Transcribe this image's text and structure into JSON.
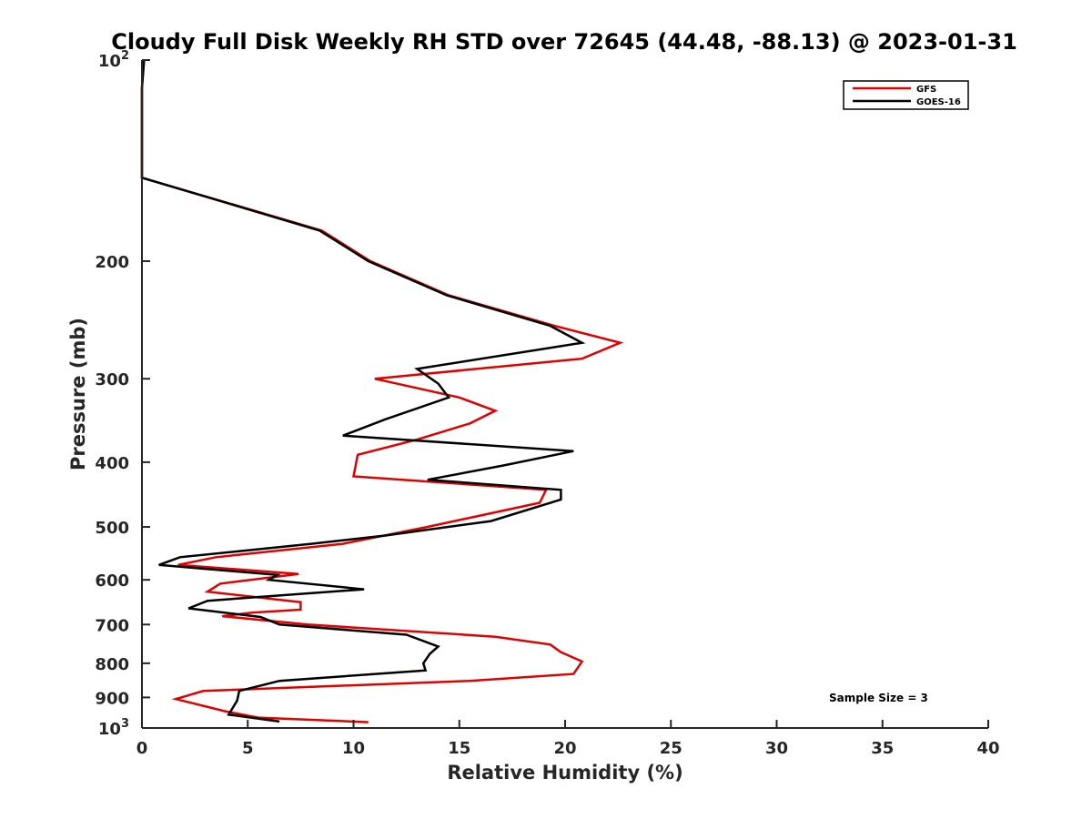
{
  "chart_data": {
    "type": "line",
    "title": "Cloudy Full Disk Weekly RH STD over 72645 (44.48, -88.13) @ 2023-01-31",
    "xlabel": "Relative Humidity (%)",
    "ylabel": "Pressure (mb)",
    "xlim": [
      0,
      40
    ],
    "ylim": [
      100,
      1000
    ],
    "y_scale": "log",
    "y_reversed": true,
    "grid": false,
    "legend_position": "top-right",
    "x_ticks": [
      "0",
      "5",
      "10",
      "15",
      "20",
      "25",
      "30",
      "35",
      "40"
    ],
    "y_ticks": [
      {
        "value": 100,
        "base": "10",
        "exp": "2"
      },
      {
        "value": 200,
        "label": "200"
      },
      {
        "value": 300,
        "label": "300"
      },
      {
        "value": 400,
        "label": "400"
      },
      {
        "value": 500,
        "label": "500"
      },
      {
        "value": 600,
        "label": "600"
      },
      {
        "value": 700,
        "label": "700"
      },
      {
        "value": 800,
        "label": "800"
      },
      {
        "value": 900,
        "label": "900"
      },
      {
        "value": 1000,
        "base": "10",
        "exp": "3"
      }
    ],
    "annotation": "Sample Size = 3",
    "series": [
      {
        "name": "GFS",
        "color": "#e00000",
        "points": [
          [
            0.1,
            100
          ],
          [
            0.0,
            110
          ],
          [
            0.0,
            125
          ],
          [
            0.0,
            150
          ],
          [
            8.5,
            180
          ],
          [
            10.8,
            200
          ],
          [
            14.5,
            225
          ],
          [
            19.5,
            250
          ],
          [
            22.6,
            265
          ],
          [
            20.8,
            280
          ],
          [
            11.0,
            300
          ],
          [
            15.0,
            320
          ],
          [
            16.7,
            335
          ],
          [
            15.5,
            350
          ],
          [
            13.0,
            370
          ],
          [
            10.2,
            390
          ],
          [
            10.0,
            420
          ],
          [
            19.1,
            440
          ],
          [
            18.8,
            460
          ],
          [
            13.5,
            500
          ],
          [
            9.5,
            530
          ],
          [
            3.5,
            555
          ],
          [
            1.7,
            570
          ],
          [
            7.4,
            588
          ],
          [
            3.7,
            608
          ],
          [
            3.1,
            625
          ],
          [
            7.5,
            648
          ],
          [
            7.5,
            665
          ],
          [
            5.2,
            672
          ],
          [
            3.8,
            680
          ],
          [
            7.8,
            700
          ],
          [
            16.7,
            730
          ],
          [
            19.3,
            750
          ],
          [
            19.8,
            770
          ],
          [
            20.8,
            795
          ],
          [
            20.4,
            830
          ],
          [
            15.5,
            850
          ],
          [
            2.9,
            880
          ],
          [
            1.6,
            905
          ],
          [
            4.0,
            945
          ],
          [
            5.5,
            965
          ],
          [
            10.7,
            980
          ]
        ]
      },
      {
        "name": "GOES-16",
        "color": "#000000",
        "points": [
          [
            0.1,
            100
          ],
          [
            0.0,
            110
          ],
          [
            0.0,
            125
          ],
          [
            0.0,
            150
          ],
          [
            8.4,
            180
          ],
          [
            10.7,
            200
          ],
          [
            14.4,
            225
          ],
          [
            19.3,
            250
          ],
          [
            20.8,
            265
          ],
          [
            13.0,
            290
          ],
          [
            14.0,
            305
          ],
          [
            14.5,
            320
          ],
          [
            11.5,
            345
          ],
          [
            9.5,
            365
          ],
          [
            20.4,
            385
          ],
          [
            17.0,
            405
          ],
          [
            13.5,
            425
          ],
          [
            19.8,
            440
          ],
          [
            19.8,
            455
          ],
          [
            16.5,
            490
          ],
          [
            11.5,
            515
          ],
          [
            8.0,
            530
          ],
          [
            1.8,
            555
          ],
          [
            0.8,
            570
          ],
          [
            6.4,
            590
          ],
          [
            6.0,
            600
          ],
          [
            10.5,
            620
          ],
          [
            3.1,
            645
          ],
          [
            2.2,
            662
          ],
          [
            5.6,
            682
          ],
          [
            6.5,
            700
          ],
          [
            12.5,
            725
          ],
          [
            14.0,
            755
          ],
          [
            13.6,
            775
          ],
          [
            13.3,
            800
          ],
          [
            13.4,
            820
          ],
          [
            6.5,
            850
          ],
          [
            4.6,
            880
          ],
          [
            4.5,
            910
          ],
          [
            4.1,
            955
          ],
          [
            6.5,
            978
          ]
        ]
      }
    ]
  }
}
